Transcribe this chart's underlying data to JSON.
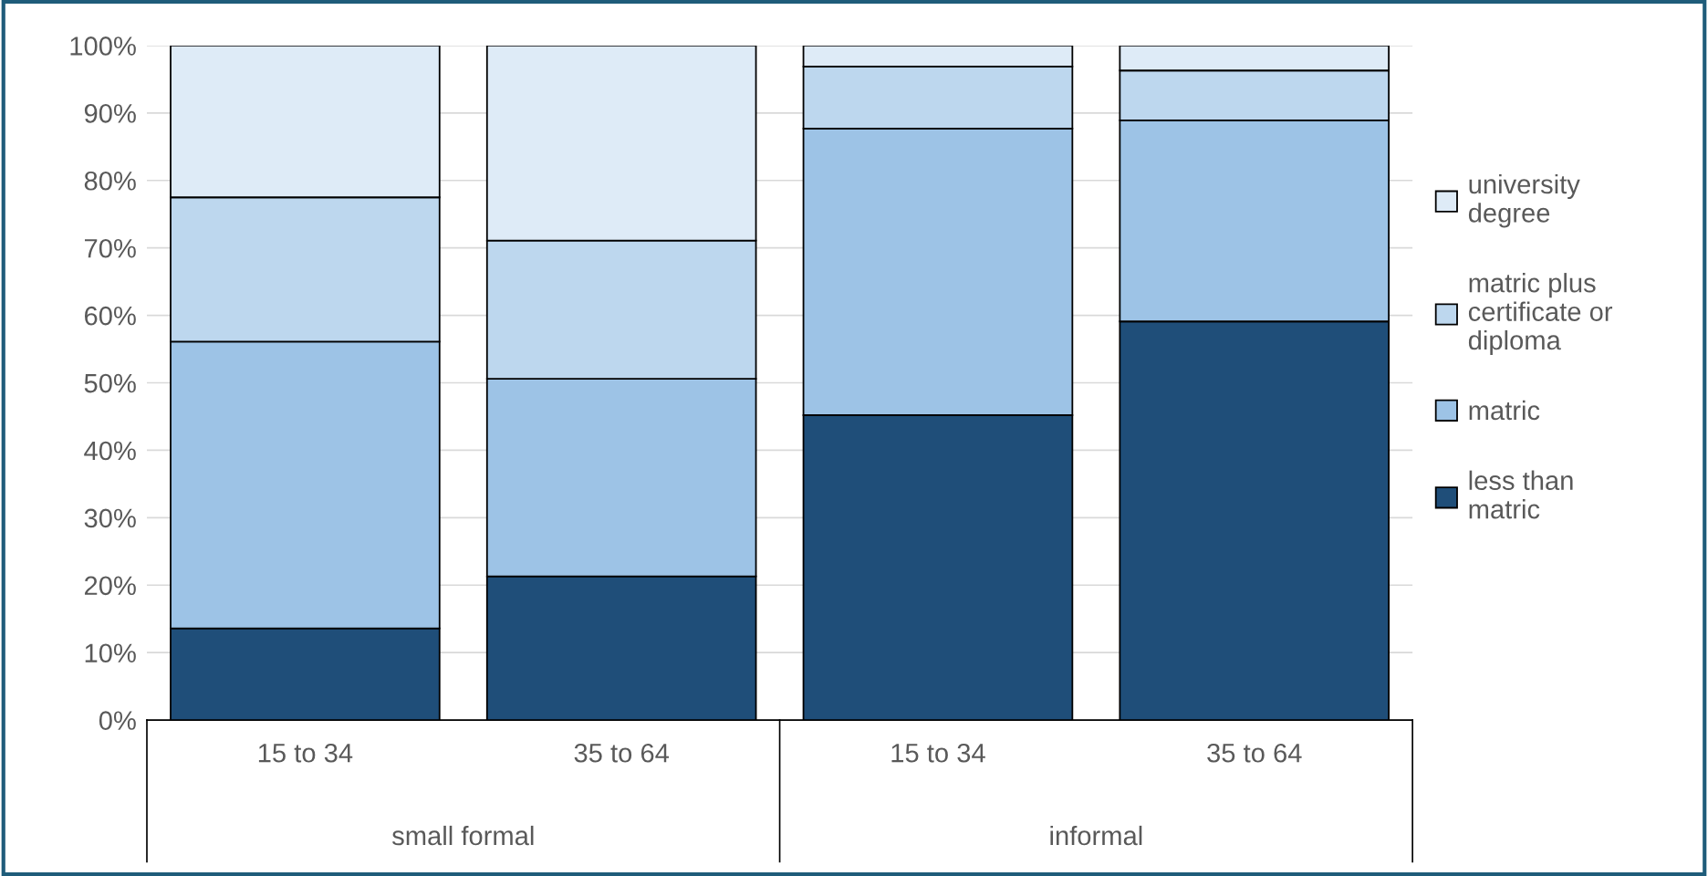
{
  "chart_data": {
    "type": "bar",
    "stacked": true,
    "categories": [
      "15 to 34",
      "35 to 64",
      "15 to 34",
      "35 to 64"
    ],
    "series": [
      {
        "name": "less than matric",
        "color": "#1f4e79",
        "values": [
          13.6,
          21.3,
          45.2,
          59.1
        ]
      },
      {
        "name": "matric",
        "color": "#9dc3e6",
        "values": [
          42.5,
          29.3,
          42.5,
          29.8
        ]
      },
      {
        "name": "matric plus certificate or diploma",
        "color": "#bdd7ee",
        "values": [
          21.4,
          20.5,
          9.2,
          7.4
        ]
      },
      {
        "name": "university degree",
        "color": "#deebf7",
        "values": [
          22.5,
          28.9,
          3.1,
          3.7
        ]
      }
    ],
    "ylim": [
      0,
      100
    ],
    "yticks": [
      {
        "value": 0,
        "label": "0%"
      },
      {
        "value": 10,
        "label": "10%"
      },
      {
        "value": 20,
        "label": "20%"
      },
      {
        "value": 30,
        "label": "30%"
      },
      {
        "value": 40,
        "label": "40%"
      },
      {
        "value": 50,
        "label": "50%"
      },
      {
        "value": 60,
        "label": "60%"
      },
      {
        "value": 70,
        "label": "70%"
      },
      {
        "value": 80,
        "label": "80%"
      },
      {
        "value": 90,
        "label": "90%"
      },
      {
        "value": 100,
        "label": "100%"
      }
    ],
    "annotations": [
      "small formal",
      "informal"
    ],
    "grid": "y",
    "legend": "right"
  }
}
